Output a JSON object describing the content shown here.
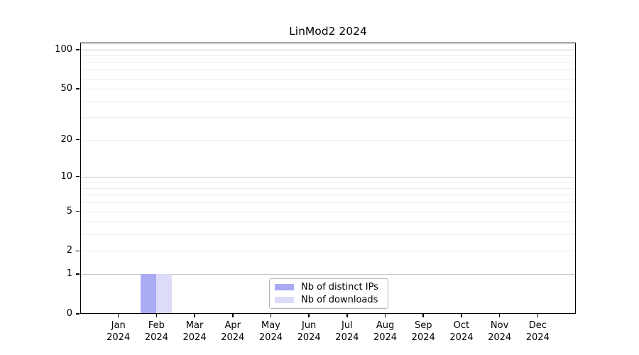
{
  "window": {
    "title": "LinMod2 2024"
  },
  "chart_data": {
    "type": "bar",
    "title": "LinMod2 2024",
    "xlabel": "",
    "ylabel": "",
    "categories": [
      "Jan",
      "Feb",
      "Mar",
      "Apr",
      "May",
      "Jun",
      "Jul",
      "Aug",
      "Sep",
      "Oct",
      "Nov",
      "Dec"
    ],
    "x_tick_year": "2024",
    "series": [
      {
        "name": "Nb of distinct IPs",
        "color": "#aaaaf5",
        "values": [
          0,
          1,
          0,
          0,
          0,
          0,
          0,
          0,
          0,
          0,
          0,
          0
        ]
      },
      {
        "name": "Nb of downloads",
        "color": "#dcdcf8",
        "values": [
          0,
          1,
          0,
          0,
          0,
          0,
          0,
          0,
          0,
          0,
          0,
          0
        ]
      }
    ],
    "y_ticks": [
      0,
      1,
      2,
      5,
      10,
      20,
      50,
      100
    ],
    "major_gridline_values": [
      1,
      10,
      100
    ],
    "minor_gridline_values": [
      2,
      3,
      4,
      5,
      6,
      7,
      8,
      9,
      20,
      30,
      40,
      50,
      60,
      70,
      80,
      90
    ],
    "scale": "log1p",
    "ylim": [
      0,
      100
    ],
    "grid": true,
    "legend_position": "lower center",
    "colors": {
      "axis": "#000000",
      "major_gridline": "#c8c8c8",
      "minor_gridline": "#ededed",
      "legend_border": "#b3b3b3",
      "text": "#000000",
      "background": "#ffffff"
    }
  }
}
